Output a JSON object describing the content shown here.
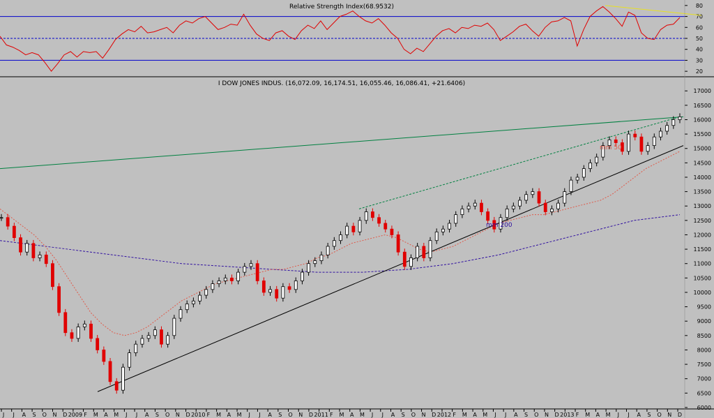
{
  "chart_data": [
    {
      "type": "line",
      "title": "Relative Strength Index(68.9532)",
      "ylim": [
        15,
        85
      ],
      "yticks": [
        20,
        30,
        40,
        50,
        60,
        70,
        80
      ],
      "reference_lines": [
        70,
        50,
        30
      ],
      "grid": false,
      "series": [
        {
          "values": [
            52,
            44,
            42,
            39,
            35,
            37,
            35,
            28,
            20,
            27,
            35,
            38,
            33,
            38,
            37,
            38,
            32,
            40,
            49,
            54,
            58,
            56,
            61,
            55,
            56,
            58,
            60,
            55,
            62,
            66,
            64,
            68,
            70,
            64,
            58,
            60,
            63,
            62,
            72,
            62,
            54,
            50,
            48,
            55,
            57,
            52,
            49,
            57,
            62,
            59,
            66,
            58,
            64,
            70,
            72,
            75,
            70,
            66,
            64,
            68,
            62,
            55,
            50,
            40,
            36,
            41,
            38,
            45,
            52,
            57,
            59,
            55,
            60,
            59,
            62,
            61,
            64,
            58,
            48,
            52,
            56,
            61,
            63,
            57,
            52,
            60,
            65,
            66,
            69,
            66,
            43,
            58,
            70,
            75,
            79,
            74,
            68,
            61,
            74,
            71,
            55,
            50,
            49,
            58,
            62,
            63,
            69
          ]
        }
      ],
      "annotations": [
        {
          "type": "trendline",
          "x": [
            868,
            1006
          ],
          "y": [
            80,
            71
          ]
        }
      ]
    },
    {
      "type": "candlestick",
      "title": "I DOW JONES INDUS. (16,072.09, 16,174.51, 16,055.46, 16,086.41, +21.6406)",
      "ylim": [
        5950,
        17200
      ],
      "yticks": [
        6000,
        6500,
        7000,
        7500,
        8000,
        8500,
        9000,
        9500,
        10000,
        10500,
        11000,
        11500,
        12000,
        12500,
        13000,
        13500,
        14000,
        14500,
        15000,
        15500,
        16000,
        16500,
        17000
      ],
      "x_tick_labels": [
        "J",
        "J",
        "A",
        "S",
        "O",
        "N",
        "D",
        "2009",
        "F",
        "M",
        "A",
        "M",
        "J",
        "J",
        "A",
        "S",
        "O",
        "N",
        "D",
        "2010",
        "F",
        "M",
        "A",
        "M",
        "J",
        "J",
        "A",
        "S",
        "O",
        "N",
        "D",
        "2011",
        "F",
        "M",
        "A",
        "M",
        "J",
        "J",
        "A",
        "S",
        "O",
        "N",
        "D",
        "2012",
        "F",
        "M",
        "A",
        "M",
        "J",
        "J",
        "A",
        "S",
        "O",
        "N",
        "D",
        "2013",
        "F",
        "M",
        "A",
        "M",
        "J",
        "J",
        "A",
        "S",
        "O",
        "N",
        "D"
      ],
      "series": [
        {
          "name": "price",
          "values": [
            12600,
            12300,
            11900,
            11400,
            11700,
            11200,
            11300,
            11000,
            10200,
            9300,
            8600,
            8400,
            8800,
            8900,
            8400,
            8000,
            7600,
            6900,
            6600,
            7400,
            7900,
            8200,
            8400,
            8500,
            8700,
            8200,
            8500,
            9100,
            9400,
            9600,
            9700,
            9900,
            10100,
            10300,
            10400,
            10500,
            10400,
            10700,
            10900,
            11000,
            10400,
            10000,
            10100,
            9800,
            10200,
            10100,
            10400,
            10700,
            11000,
            11100,
            11300,
            11600,
            11800,
            12000,
            12300,
            12100,
            12500,
            12800,
            12600,
            12400,
            12200,
            12000,
            11400,
            10900,
            11200,
            11600,
            11200,
            11800,
            12100,
            12200,
            12400,
            12700,
            12900,
            13000,
            13100,
            12800,
            12500,
            12200,
            12600,
            12900,
            13000,
            13200,
            13400,
            13500,
            13100,
            12800,
            12900,
            13100,
            13500,
            13900,
            14000,
            14300,
            14500,
            14700,
            15100,
            15300,
            15200,
            14900,
            15500,
            15400,
            14900,
            15100,
            15400,
            15600,
            15800,
            16000,
            16100
          ]
        },
        {
          "name": "mm 50",
          "values": [
            12900,
            12600,
            12300,
            12000,
            11600,
            11100,
            10500,
            9900,
            9300,
            8900,
            8600,
            8500,
            8600,
            8800,
            9100,
            9400,
            9700,
            9900,
            10100,
            10300,
            10400,
            10500,
            10600,
            10700,
            10800,
            10800,
            10900,
            11000,
            11200,
            11300,
            11500,
            11700,
            11800,
            11900,
            12000,
            11900,
            11700,
            11500,
            11400,
            11500,
            11600,
            11800,
            12000,
            12200,
            12400,
            12500,
            12600,
            12700,
            12700,
            12800,
            12900,
            13000,
            13100,
            13200,
            13400,
            13700,
            14000,
            14300,
            14500,
            14700,
            14900
          ]
        },
        {
          "name": "mm 200",
          "values": [
            11800,
            11600,
            11400,
            11200,
            11000,
            10900,
            10800,
            10700,
            10700,
            10800,
            11000,
            11300,
            11700,
            12100,
            12500,
            12700
          ]
        }
      ],
      "annotations": [
        {
          "type": "trendline",
          "x": "Mar 2009 - Dec 2013",
          "y": [
            6550,
            15100
          ]
        },
        {
          "type": "resistance",
          "y": [
            14300,
            16100
          ]
        },
        {
          "type": "channel",
          "y": [
            12900,
            16100
          ]
        },
        {
          "type": "label",
          "text": "mm 50"
        },
        {
          "type": "label",
          "text": "mm 200"
        }
      ]
    }
  ],
  "labels": {
    "mm50": "mm 50",
    "mm200": "mm 200"
  },
  "colors": {
    "background": "#c0c0c0",
    "rsi_line": "#e00000",
    "rsi_reference": "#0000cc",
    "rsi_trendline": "#e8e020",
    "candle_up": "#000000",
    "candle_down": "#e00000",
    "mm50": "#e05a4a",
    "mm200": "#3010a0",
    "support_trendline": "#000000",
    "resistance_line": "#008040",
    "channel_line": "#008040"
  }
}
